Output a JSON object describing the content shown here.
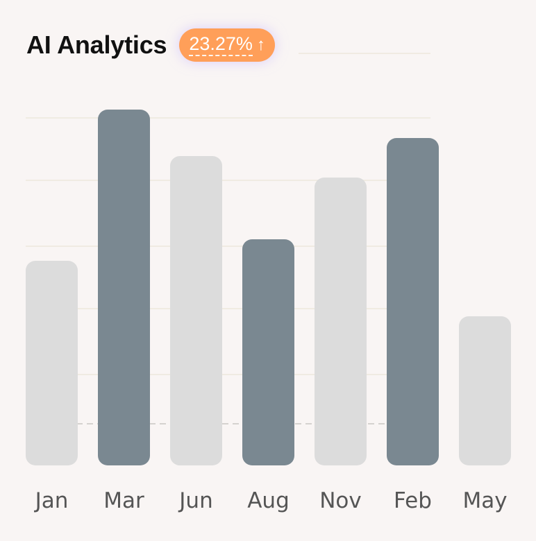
{
  "header": {
    "title": "AI Analytics",
    "badge_value": "23.27%",
    "badge_icon": "arrow-up-icon",
    "badge_color": "#ff9f59"
  },
  "chart_data": {
    "type": "bar",
    "title": "AI Analytics",
    "xlabel": "",
    "ylabel": "",
    "categories": [
      "Jan",
      "Mar",
      "Jun",
      "Aug",
      "Nov",
      "Feb",
      "May"
    ],
    "values": [
      295,
      513,
      446,
      326,
      415,
      472,
      215
    ],
    "highlighted": [
      false,
      true,
      false,
      true,
      false,
      true,
      false
    ],
    "ylim": [
      0,
      560
    ],
    "grid": true,
    "reference_line": 60,
    "colors": {
      "normal": "#dcdcdc",
      "highlight": "#7a8891",
      "grid": "#f0ebe2",
      "reference": "#d5d2cf",
      "tick_text": "#555555"
    }
  }
}
